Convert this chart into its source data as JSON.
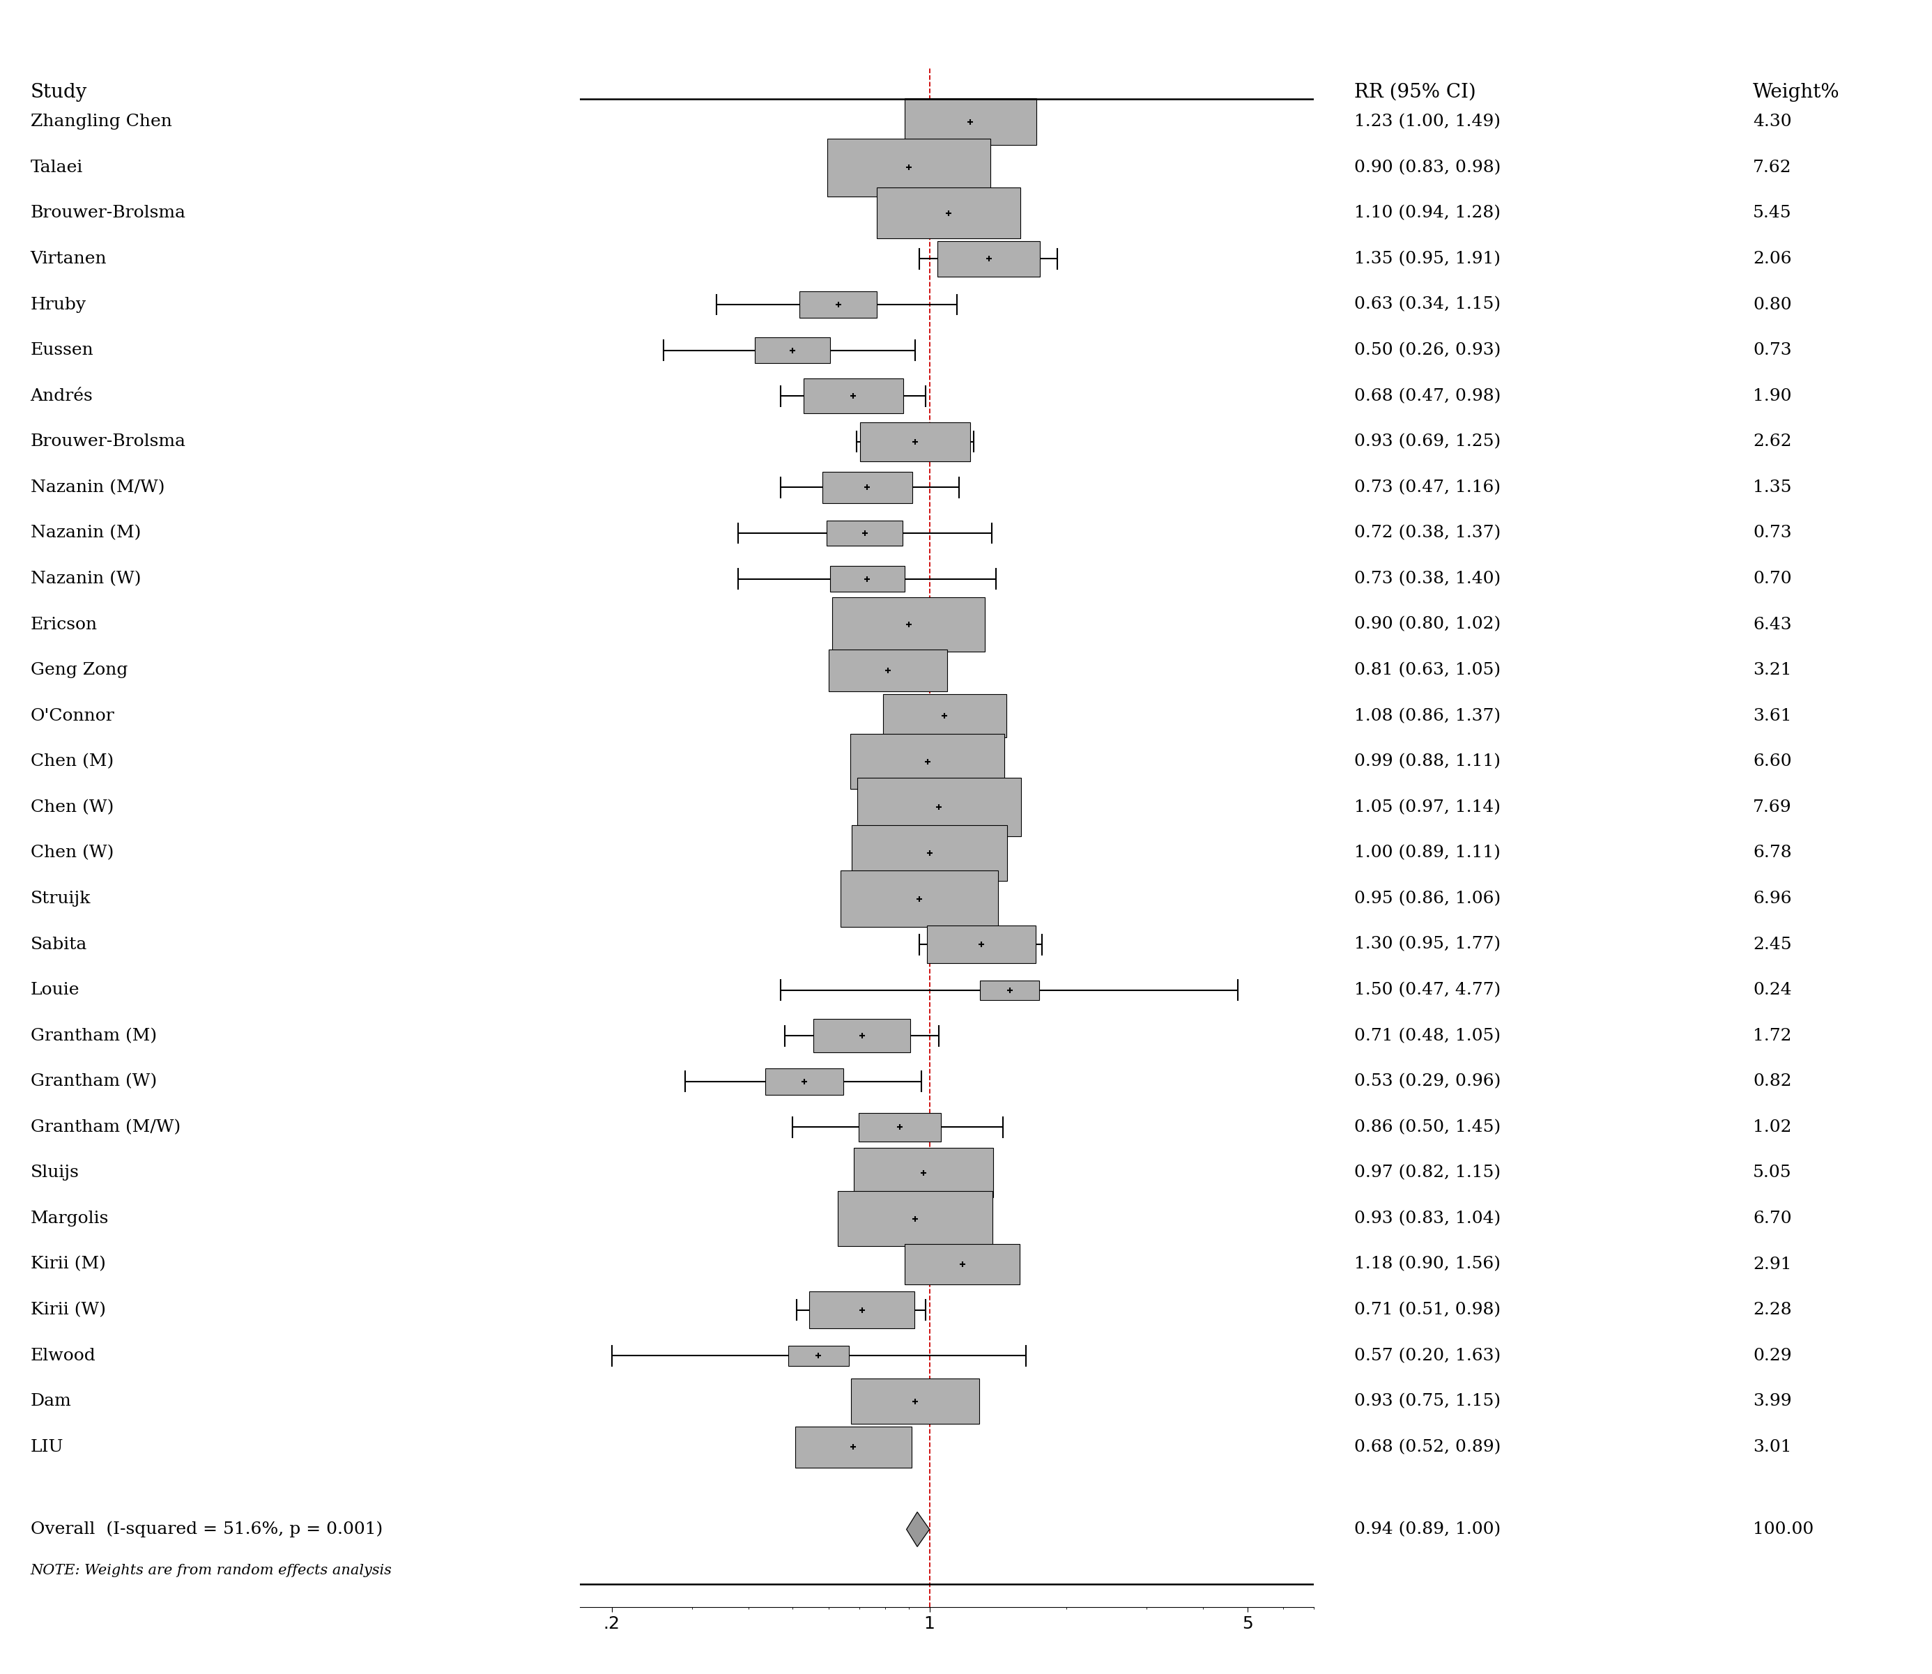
{
  "studies": [
    {
      "name": "Zhangling Chen",
      "rr": 1.23,
      "ci_lo": 1.0,
      "ci_hi": 1.49,
      "weight": 4.3
    },
    {
      "name": "Talaei",
      "rr": 0.9,
      "ci_lo": 0.83,
      "ci_hi": 0.98,
      "weight": 7.62
    },
    {
      "name": "Brouwer-Brolsma",
      "rr": 1.1,
      "ci_lo": 0.94,
      "ci_hi": 1.28,
      "weight": 5.45
    },
    {
      "name": "Virtanen",
      "rr": 1.35,
      "ci_lo": 0.95,
      "ci_hi": 1.91,
      "weight": 2.06
    },
    {
      "name": "Hruby",
      "rr": 0.63,
      "ci_lo": 0.34,
      "ci_hi": 1.15,
      "weight": 0.8
    },
    {
      "name": "Eussen",
      "rr": 0.5,
      "ci_lo": 0.26,
      "ci_hi": 0.93,
      "weight": 0.73
    },
    {
      "name": "Andrés",
      "rr": 0.68,
      "ci_lo": 0.47,
      "ci_hi": 0.98,
      "weight": 1.9
    },
    {
      "name": "Brouwer-Brolsma",
      "rr": 0.93,
      "ci_lo": 0.69,
      "ci_hi": 1.25,
      "weight": 2.62
    },
    {
      "name": "Nazanin (M/W)",
      "rr": 0.73,
      "ci_lo": 0.47,
      "ci_hi": 1.16,
      "weight": 1.35
    },
    {
      "name": "Nazanin (M)",
      "rr": 0.72,
      "ci_lo": 0.38,
      "ci_hi": 1.37,
      "weight": 0.73
    },
    {
      "name": "Nazanin (W)",
      "rr": 0.73,
      "ci_lo": 0.38,
      "ci_hi": 1.4,
      "weight": 0.7
    },
    {
      "name": "Ericson",
      "rr": 0.9,
      "ci_lo": 0.8,
      "ci_hi": 1.02,
      "weight": 6.43
    },
    {
      "name": "Geng Zong",
      "rr": 0.81,
      "ci_lo": 0.63,
      "ci_hi": 1.05,
      "weight": 3.21
    },
    {
      "name": "O'Connor",
      "rr": 1.08,
      "ci_lo": 0.86,
      "ci_hi": 1.37,
      "weight": 3.61
    },
    {
      "name": "Chen (M)",
      "rr": 0.99,
      "ci_lo": 0.88,
      "ci_hi": 1.11,
      "weight": 6.6
    },
    {
      "name": "Chen (W)",
      "rr": 1.05,
      "ci_lo": 0.97,
      "ci_hi": 1.14,
      "weight": 7.69
    },
    {
      "name": "Chen (W)",
      "rr": 1.0,
      "ci_lo": 0.89,
      "ci_hi": 1.11,
      "weight": 6.78
    },
    {
      "name": "Struijk",
      "rr": 0.95,
      "ci_lo": 0.86,
      "ci_hi": 1.06,
      "weight": 6.96
    },
    {
      "name": "Sabita",
      "rr": 1.3,
      "ci_lo": 0.95,
      "ci_hi": 1.77,
      "weight": 2.45
    },
    {
      "name": "Louie",
      "rr": 1.5,
      "ci_lo": 0.47,
      "ci_hi": 4.77,
      "weight": 0.24
    },
    {
      "name": "Grantham (M)",
      "rr": 0.71,
      "ci_lo": 0.48,
      "ci_hi": 1.05,
      "weight": 1.72
    },
    {
      "name": "Grantham (W)",
      "rr": 0.53,
      "ci_lo": 0.29,
      "ci_hi": 0.96,
      "weight": 0.82
    },
    {
      "name": "Grantham (M/W)",
      "rr": 0.86,
      "ci_lo": 0.5,
      "ci_hi": 1.45,
      "weight": 1.02
    },
    {
      "name": "Sluijs",
      "rr": 0.97,
      "ci_lo": 0.82,
      "ci_hi": 1.15,
      "weight": 5.05
    },
    {
      "name": "Margolis",
      "rr": 0.93,
      "ci_lo": 0.83,
      "ci_hi": 1.04,
      "weight": 6.7
    },
    {
      "name": "Kirii (M)",
      "rr": 1.18,
      "ci_lo": 0.9,
      "ci_hi": 1.56,
      "weight": 2.91
    },
    {
      "name": "Kirii (W)",
      "rr": 0.71,
      "ci_lo": 0.51,
      "ci_hi": 0.98,
      "weight": 2.28
    },
    {
      "name": "Elwood",
      "rr": 0.57,
      "ci_lo": 0.2,
      "ci_hi": 1.63,
      "weight": 0.29
    },
    {
      "name": "Dam",
      "rr": 0.93,
      "ci_lo": 0.75,
      "ci_hi": 1.15,
      "weight": 3.99
    },
    {
      "name": "LIU",
      "rr": 0.68,
      "ci_lo": 0.52,
      "ci_hi": 0.89,
      "weight": 3.01
    }
  ],
  "overall": {
    "rr": 0.94,
    "ci_lo": 0.89,
    "ci_hi": 1.0,
    "label": "Overall  (I-squared = 51.6%, p = 0.001)"
  },
  "note": "NOTE: Weights are from random effects analysis",
  "xmin": 0.17,
  "xmax": 7.0,
  "xticks": [
    0.2,
    1.0,
    5.0
  ],
  "ref_line": 1.0,
  "box_color": "#b0b0b0",
  "line_color": "#000000",
  "diamond_color": "#999999",
  "ref_line_color": "#cc0000",
  "background_color": "#ffffff",
  "header_fontsize": 20,
  "label_fontsize": 18,
  "tick_fontsize": 18,
  "note_fontsize": 15
}
